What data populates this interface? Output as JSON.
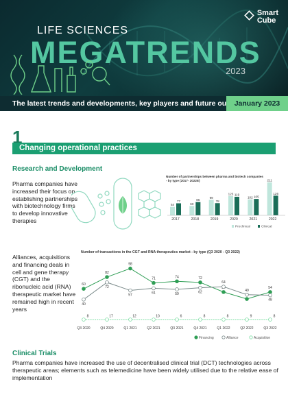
{
  "brand": {
    "name_line1": "Smart",
    "name_line2": "Cube"
  },
  "header": {
    "title_small": "LIFE SCIENCES",
    "title_big": "MEGATRENDS",
    "year": "2023"
  },
  "banner": {
    "tagline": "The latest trends and developments, key players and future outlook",
    "date": "January 2023"
  },
  "section": {
    "number": "1",
    "title": "Changing operational practices"
  },
  "rd": {
    "heading": "Research and Development",
    "paragraph": "Pharma companies have increased their focus on establishing partnerships with biotechnology firms to develop innovative therapies"
  },
  "alliances": {
    "paragraph": "Alliances, acquisitions and financing deals in cell and gene therapy (CGT) and the ribonucleic acid (RNA) therapeutic market have remained high in recent years"
  },
  "clinical": {
    "heading": "Clinical Trials",
    "paragraph": "Pharma companies have increased the use of decentralised clinical trial (DCT) technologies across therapeutic areas; elements such as telemedicine have been widely utilised due to the relative ease of implementation"
  },
  "colors": {
    "accent": "#1b9f72",
    "dark": "#0e2c31",
    "light_green": "#6fd08a",
    "preclinical": "#bfe6dc",
    "clinical": "#1a6e58"
  },
  "chart_data": [
    {
      "type": "bar",
      "title": "Number of partnerships between pharma and biotech companies - by type (2017- 2022E)",
      "categories": [
        "2017",
        "2018",
        "2019",
        "2020",
        "2021",
        "2022"
      ],
      "series": [
        {
          "name": "Preclinical",
          "values": [
            54,
            60,
            99,
            123,
            102,
            211
          ]
        },
        {
          "name": "Clinical",
          "values": [
            77,
            85,
            78,
            119,
            105,
            126
          ]
        }
      ],
      "ylim": [
        0,
        211
      ],
      "legend": "bottom-right"
    },
    {
      "type": "line",
      "title": "Number of transactions in the CGT and RNA therapeutics market - by type (Q3 2020 - Q3 2022)",
      "categories": [
        "Q3 2020",
        "Q4 2020",
        "Q1 2021",
        "Q2 2021",
        "Q3 2021",
        "Q4 2021",
        "Q1 2022",
        "Q2 2022",
        "Q3 2022"
      ],
      "series": [
        {
          "name": "Financing",
          "values": [
            60,
            82,
            98,
            71,
            74,
            72,
            54,
            41,
            54
          ]
        },
        {
          "name": "Alliance",
          "values": [
            40,
            72,
            57,
            61,
            59,
            62,
            64,
            49,
            48
          ]
        },
        {
          "name": "Acquisition",
          "values": [
            8,
            17,
            12,
            10,
            6,
            8,
            8,
            9,
            8
          ]
        }
      ],
      "ylim": [
        0,
        100
      ],
      "legend": "bottom"
    }
  ]
}
